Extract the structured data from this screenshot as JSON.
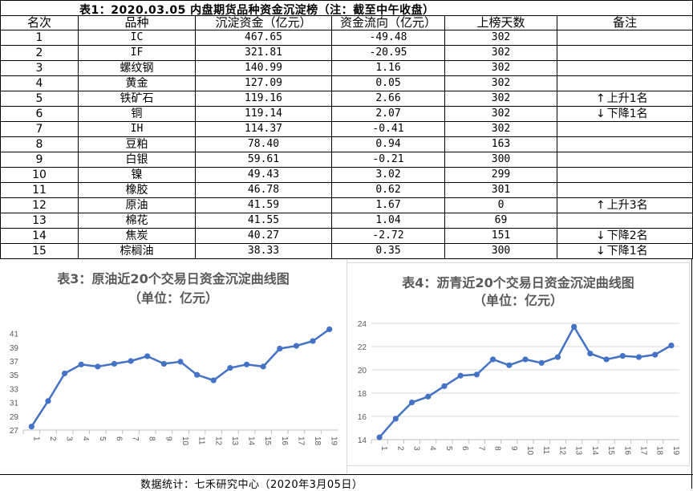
{
  "table": {
    "title": "表1：2020.03.05 内盘期货品种资金沉淀榜（注：截至中午收盘）",
    "headers": [
      "名次",
      "品种",
      "沉淀资金（亿元）",
      "资金流向（亿元）",
      "上榜天数",
      "备注"
    ],
    "rows": [
      {
        "rank": "1",
        "name": "IC",
        "amount": "467.65",
        "flow": "-49.48",
        "days": "302",
        "note_arrow": "",
        "note": ""
      },
      {
        "rank": "2",
        "name": "IF",
        "amount": "321.81",
        "flow": "-20.95",
        "days": "302",
        "note_arrow": "",
        "note": ""
      },
      {
        "rank": "3",
        "name": "螺纹钢",
        "amount": "140.99",
        "flow": "1.16",
        "days": "302",
        "note_arrow": "",
        "note": ""
      },
      {
        "rank": "4",
        "name": "黄金",
        "amount": "127.09",
        "flow": "0.05",
        "days": "302",
        "note_arrow": "",
        "note": ""
      },
      {
        "rank": "5",
        "name": "铁矿石",
        "amount": "119.16",
        "flow": "2.66",
        "days": "302",
        "note_arrow": "↑",
        "note": "上升1名"
      },
      {
        "rank": "6",
        "name": "铜",
        "amount": "119.14",
        "flow": "2.07",
        "days": "302",
        "note_arrow": "↓",
        "note": "下降1名"
      },
      {
        "rank": "7",
        "name": "IH",
        "amount": "114.37",
        "flow": "-0.41",
        "days": "302",
        "note_arrow": "",
        "note": ""
      },
      {
        "rank": "8",
        "name": "豆粕",
        "amount": "78.40",
        "flow": "0.94",
        "days": "163",
        "note_arrow": "",
        "note": ""
      },
      {
        "rank": "9",
        "name": "白银",
        "amount": "59.61",
        "flow": "-0.21",
        "days": "300",
        "note_arrow": "",
        "note": ""
      },
      {
        "rank": "10",
        "name": "镍",
        "amount": "49.43",
        "flow": "3.02",
        "days": "299",
        "note_arrow": "",
        "note": ""
      },
      {
        "rank": "11",
        "name": "橡胶",
        "amount": "46.78",
        "flow": "0.62",
        "days": "301",
        "note_arrow": "",
        "note": ""
      },
      {
        "rank": "12",
        "name": "原油",
        "amount": "41.59",
        "flow": "1.67",
        "days": "0",
        "note_arrow": "↑",
        "note": "上升3名"
      },
      {
        "rank": "13",
        "name": "棉花",
        "amount": "41.55",
        "flow": "1.04",
        "days": "69",
        "note_arrow": "",
        "note": ""
      },
      {
        "rank": "14",
        "name": "焦炭",
        "amount": "40.27",
        "flow": "-2.72",
        "days": "151",
        "note_arrow": "↓",
        "note": "下降2名"
      },
      {
        "rank": "15",
        "name": "棕榈油",
        "amount": "38.33",
        "flow": "0.35",
        "days": "300",
        "note_arrow": "↓",
        "note": "下降1名"
      }
    ]
  },
  "chart_data": [
    {
      "type": "line",
      "title": "表3：原油近20个交易日资金沉淀曲线图",
      "subtitle": "（单位：亿元）",
      "x": [
        "1",
        "2",
        "3",
        "4",
        "5",
        "6",
        "7",
        "8",
        "9",
        "10",
        "11",
        "12",
        "13",
        "14",
        "15",
        "16",
        "17",
        "18",
        "19"
      ],
      "series": [
        {
          "values": [
            27.5,
            31.2,
            35.2,
            36.5,
            36.2,
            36.6,
            37.0,
            37.7,
            36.6,
            36.9,
            35.0,
            34.2,
            36.0,
            36.5,
            36.2,
            38.8,
            39.2,
            39.9,
            41.6
          ]
        }
      ],
      "yticks": [
        27,
        29,
        31,
        33,
        35,
        37,
        39,
        41
      ],
      "ylim": [
        27,
        42
      ],
      "color": "#4472c4",
      "grid": false
    },
    {
      "type": "line",
      "title": "表4：沥青近20个交易日资金沉淀曲线图",
      "subtitle": "（单位：亿元）",
      "x": [
        "1",
        "2",
        "3",
        "4",
        "5",
        "6",
        "7",
        "8",
        "9",
        "10",
        "11",
        "12",
        "13",
        "14",
        "15",
        "16",
        "17",
        "18",
        "19"
      ],
      "series": [
        {
          "values": [
            14.2,
            15.8,
            17.2,
            17.7,
            18.6,
            19.5,
            19.6,
            20.9,
            20.4,
            20.9,
            20.6,
            21.1,
            23.7,
            21.4,
            20.9,
            21.2,
            21.1,
            21.3,
            22.1
          ]
        }
      ],
      "yticks": [
        14,
        16,
        18,
        20,
        22,
        24
      ],
      "ylim": [
        14,
        24
      ],
      "color": "#4472c4",
      "grid": true
    }
  ],
  "footer": "数据统计：七禾研究中心（2020年3月05日）"
}
